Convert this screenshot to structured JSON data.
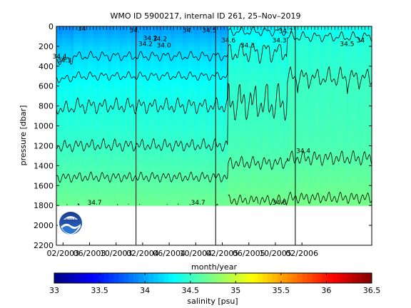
{
  "chart_data": {
    "type": "heatmap",
    "title": "WMO ID 5900217, internal ID 261, 25–Nov–2019",
    "xlabel": "month/year",
    "ylabel": "pressure [dbar]",
    "y_axis": {
      "ticks": [
        0,
        200,
        400,
        600,
        800,
        1000,
        1200,
        1400,
        1600,
        1800,
        2000,
        2200
      ],
      "tick_labels": [
        "0",
        "200",
        "400",
        "600",
        "800",
        "1000",
        "1200",
        "1400",
        "1600",
        "1800",
        "2000",
        "2200"
      ],
      "range": [
        0,
        2200
      ],
      "inverted": true
    },
    "x_axis": {
      "tick_labels": [
        "02/2003",
        "06/2003",
        "10/2003",
        "02/2004",
        "06/2004",
        "10/2004",
        "02/2005",
        "06/2005",
        "10/2005",
        "02/2006"
      ],
      "range": [
        "01/2003",
        "12/2006"
      ]
    },
    "year_boundaries": [
      "01/2004",
      "01/2005",
      "01/2006"
    ],
    "colorbar": {
      "label": "salinity [psu]",
      "ticks": [
        33,
        33.5,
        34,
        34.5,
        35,
        35.5,
        36,
        36.5
      ],
      "tick_labels": [
        "33",
        "33.5",
        "34",
        "34.5",
        "35",
        "35.5",
        "36",
        "36.5"
      ],
      "range": [
        33,
        36.5
      ]
    },
    "data_max_pressure": 1800,
    "contour_levels": [
      34.2,
      34.3,
      34.4,
      34.5,
      34.6,
      34.7
    ],
    "contour_labels": [
      {
        "text": "34",
        "date": "2003.32",
        "pressure": 20
      },
      {
        "text": "34.",
        "date": "2003.98",
        "pressure": 40
      },
      {
        "text": "34.",
        "date": "2004.65",
        "pressure": 40
      },
      {
        "text": "34.5",
        "date": "2004.92",
        "pressure": 40
      },
      {
        "text": "34.7",
        "date": "2005.88",
        "pressure": 45
      },
      {
        "text": "34.2",
        "date": "2004.18",
        "pressure": 120
      },
      {
        "text": "34.2",
        "date": "2004.30",
        "pressure": 125
      },
      {
        "text": "34.6",
        "date": "2005.16",
        "pressure": 140
      },
      {
        "text": "34.3",
        "date": "2005.80",
        "pressure": 140
      },
      {
        "text": "34",
        "date": "2006.82",
        "pressure": 140
      },
      {
        "text": "34.2",
        "date": "2004.12",
        "pressure": 175
      },
      {
        "text": "34.0",
        "date": "2004.35",
        "pressure": 190
      },
      {
        "text": "34.3",
        "date": "2005.40",
        "pressure": 190
      },
      {
        "text": "34.5",
        "date": "2006.65",
        "pressure": 175
      },
      {
        "text": "34.4",
        "date": "2003.04",
        "pressure": 300
      },
      {
        "text": "34.3",
        "date": "2003.10",
        "pressure": 340
      },
      {
        "text": "34.4",
        "date": "2006.10",
        "pressure": 1250
      },
      {
        "text": "34.7",
        "date": "2003.48",
        "pressure": 1770
      },
      {
        "text": "34.7",
        "date": "2004.78",
        "pressure": 1770
      },
      {
        "text": "34.6",
        "date": "2005.80",
        "pressure": 1770
      }
    ]
  },
  "logo": {
    "name": "NOAA",
    "text": "NOAA"
  }
}
